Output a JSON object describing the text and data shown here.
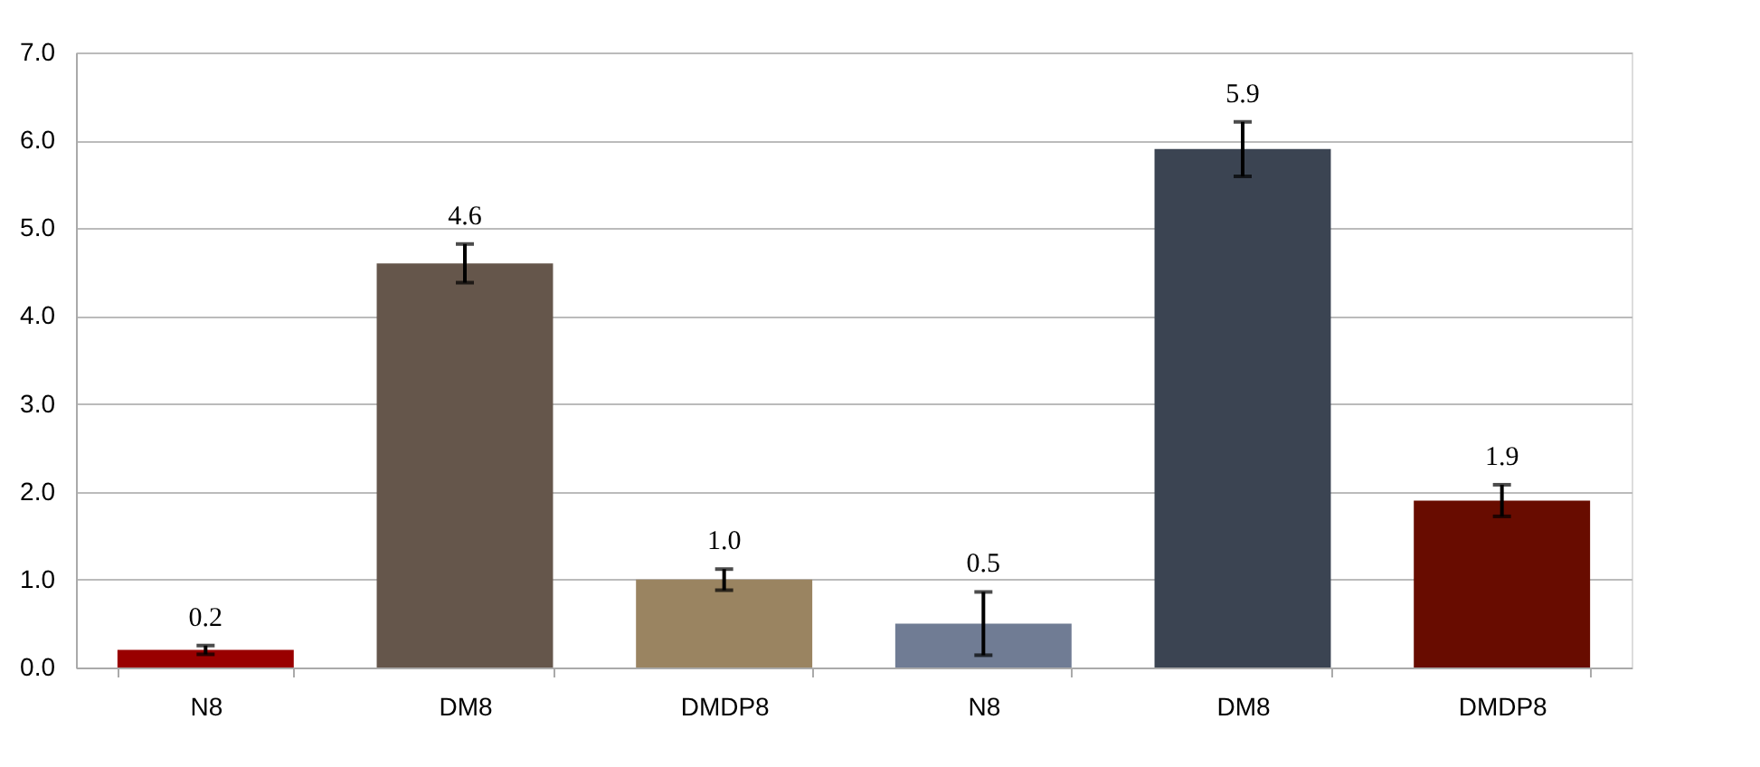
{
  "chart_data": {
    "type": "bar",
    "categories": [
      "N8",
      "DM8",
      "DMDP8",
      "N8",
      "DM8",
      "DMDP8"
    ],
    "values": [
      0.2,
      4.6,
      1.0,
      0.5,
      5.9,
      1.9
    ],
    "errors": [
      0.05,
      0.22,
      0.12,
      0.36,
      0.31,
      0.18
    ],
    "colors": [
      "#990000",
      "#65564b",
      "#9a8461",
      "#707c94",
      "#3b4452",
      "#680c00"
    ],
    "ylim": [
      0,
      7
    ],
    "yticks": [
      {
        "value": 0,
        "label": "0.0"
      },
      {
        "value": 1,
        "label": "1.0"
      },
      {
        "value": 2,
        "label": "2.0"
      },
      {
        "value": 3,
        "label": "3.0"
      },
      {
        "value": 4,
        "label": "4.0"
      },
      {
        "value": 5,
        "label": "5.0"
      },
      {
        "value": 6,
        "label": "6.0"
      },
      {
        "value": 7,
        "label": "7.0"
      }
    ],
    "value_labels": [
      "0.2",
      "4.6",
      "1.0",
      "0.5",
      "5.9",
      "1.9"
    ],
    "grid": "y"
  }
}
